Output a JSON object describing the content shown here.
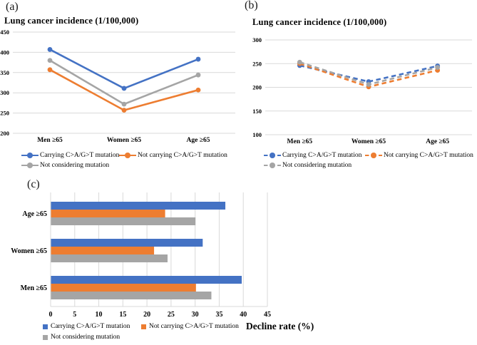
{
  "figure": {
    "background": "#ffffff"
  },
  "colors": {
    "series_blue": "#4472C4",
    "series_orange": "#ED7D31",
    "series_gray": "#A5A5A5",
    "gridline": "#D9D9D9",
    "text": "#000000"
  },
  "chart_data": [
    {
      "id": "a",
      "type": "line",
      "panel_label": "(a)",
      "title": "Lung cancer incidence (1/100,000)",
      "categories": [
        "Men ≥65",
        "Women ≥65",
        "Age ≥65"
      ],
      "series": [
        {
          "name": "Carrying C>A/G>T mutation",
          "color": "#4472C4",
          "dashed": false,
          "values": [
            407,
            311,
            383
          ]
        },
        {
          "name": "Not carrying  C>A/G>T mutation",
          "color": "#ED7D31",
          "dashed": false,
          "values": [
            357,
            257,
            307
          ]
        },
        {
          "name": "Not considering mutation",
          "color": "#A5A5A5",
          "dashed": false,
          "values": [
            380,
            272,
            344
          ]
        }
      ],
      "ylim": [
        200,
        450
      ],
      "ytick_step": 50,
      "grid": true,
      "legend_position": "bottom"
    },
    {
      "id": "b",
      "type": "line",
      "panel_label": "(b)",
      "title": "Lung cancer incidence (1/100,000)",
      "categories": [
        "Men ≥65",
        "Women ≥65",
        "Age ≥65"
      ],
      "series": [
        {
          "name": "Carrying C>A/G>T mutation",
          "color": "#4472C4",
          "dashed": true,
          "values": [
            246,
            212,
            245
          ]
        },
        {
          "name": "Not carrying  C>A/G>T mutation",
          "color": "#ED7D31",
          "dashed": true,
          "values": [
            250,
            201,
            236
          ]
        },
        {
          "name": "Not considering mutation",
          "color": "#A5A5A5",
          "dashed": true,
          "values": [
            253,
            206,
            242
          ]
        }
      ],
      "ylim": [
        100,
        300
      ],
      "ytick_step": 50,
      "grid": true,
      "legend_position": "bottom"
    },
    {
      "id": "c",
      "type": "bar",
      "panel_label": "(c)",
      "title": "",
      "orientation": "horizontal",
      "categories": [
        "Age ≥65",
        "Women ≥65",
        "Men ≥65"
      ],
      "series": [
        {
          "name": "Carrying C>A/G>T mutation",
          "color": "#4472C4",
          "values": [
            36.2,
            31.5,
            39.6
          ]
        },
        {
          "name": "Not carrying  C>A/G>T mutation",
          "color": "#ED7D31",
          "values": [
            23.7,
            21.4,
            30.1
          ]
        },
        {
          "name": "Not considering mutation",
          "color": "#A5A5A5",
          "values": [
            30.0,
            24.2,
            33.3
          ]
        }
      ],
      "xlim": [
        0,
        45
      ],
      "xtick_step": 5,
      "xlabel": "Decline rate (%)",
      "grid": true,
      "legend_position": "bottom"
    }
  ]
}
